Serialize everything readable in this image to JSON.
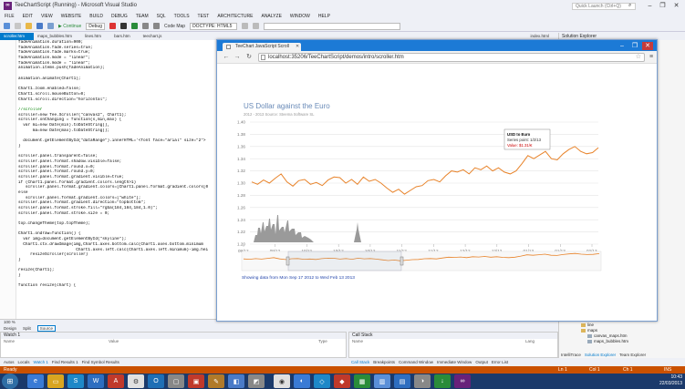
{
  "vs": {
    "title": "TeeChartScript (Running) - Microsoft Visual Studio",
    "quick_launch_placeholder": "Quick Launch (Ctrl+Q)",
    "menu": [
      "FILE",
      "EDIT",
      "VIEW",
      "WEBSITE",
      "BUILD",
      "DEBUG",
      "TEAM",
      "SQL",
      "TOOLS",
      "TEST",
      "ARCHITECTURE",
      "ANALYZE",
      "WINDOW",
      "HELP"
    ],
    "toolbar": {
      "continue_label": "▶ Continue",
      "config_value": "Debug",
      "code_map_label": "Code Map",
      "doctype_value": "DOCTYPE: HTML5"
    },
    "doc_tabs": [
      "scroller.htm",
      "maps_bubbles.htm",
      "lines.htm",
      "bars.htm",
      "teechart.js"
    ],
    "right_doc_tab": "index.html",
    "code_lines": [
      "fadeAnimation.duration=900;",
      "fadeAnimation.fade.series=true;",
      "fadeAnimation.fade.marks=true;",
      "fadeAnimation.mode = \"linear\";",
      "fadeAnimation.mode = \"linear\";",
      "animation.items.push(fadeAnimation);",
      "",
      "animation.animate(Chart1);",
      "",
      "Chart1.zoom.enabled=false;",
      "Chart1.scroll.mouseButton=0;",
      "Chart1.scroll.direction=\"horizontal\";",
      "",
      "//scroller",
      "scroller=new Tee.Scroller(\"canvas2\", Chart1);",
      "scroller.onChanging = function(s,min,max) {",
      "  var mi=new Date(min).toDateString(),",
      "      ma=new Date(max).toDateString();",
      "",
      "  document.getElementById(\"dataRange\").innerHTML='<font face=\"arial\" size=\"2\">",
      "}",
      "",
      "scroller.panel.transparent=false;",
      "scroller.panel.format.shadow.visible=false;",
      "scroller.panel.format.round.x=0;",
      "scroller.panel.format.round.y=0;",
      "scroller.panel.format.gradient.visible=true;",
      "if (Chart1.panel.format.gradient.colors.length>1)",
      "   scroller.panel.format.gradient.colors=[Chart1.panel.format.gradient.colors[0",
      "else",
      "   scroller.panel.format.gradient.colors=[\"white\"];",
      "scroller.panel.format.gradient.direction=\"topbottom\";",
      "scroller.panel.format.stroke.fill=\"rgba(184,184,184,1.0)\";",
      "scroller.panel.format.stroke.size = 0;",
      "",
      "top.changeTheme(top.topTheme);",
      "",
      "Chart1.ondraw=function() {",
      "  var img=document.getElementById(\"skyline\");",
      "  Chart1.ctx.drawImage(img,Chart1.axes.bottom.calc(Chart1.axes.bottom.minimum",
      "                        Chart1.axes.left.calc(Chart1.axes.left.minimum)-img.hei",
      "     resizeScroller(scroller)",
      "}",
      "",
      "resize(Chart1);",
      "}",
      "",
      "function resize(chart) {"
    ],
    "zoom_level": "100 %",
    "view_tabs": [
      "Design",
      "Split",
      "Source"
    ],
    "watch": {
      "title": "Watch 1",
      "col_name": "Name",
      "col_value": "Value",
      "col_type": "Type"
    },
    "callstack": {
      "title": "Call Stack",
      "col_name": "Name",
      "col_lang": "Lang"
    },
    "bottom_tabs_left": [
      "Autos",
      "Locals",
      "Watch 1",
      "Find Results 1",
      "Find Symbol Results"
    ],
    "bottom_tabs_right": [
      "Call Stack",
      "Breakpoints",
      "Command Window",
      "Immediate Window",
      "Output",
      "Error List"
    ],
    "solution_explorer": {
      "title": "Solution Explorer",
      "items": [
        "gantt",
        "line",
        "maps",
        "canvas_maps.htm",
        "maps_bubbles.htm"
      ],
      "tabs": [
        "IntelliTrace",
        "Solution Explorer",
        "Team Explorer"
      ]
    },
    "status": {
      "left": "Ready",
      "ln": "Ln 1",
      "col": "Col 1",
      "ch": "Ch 1",
      "ins": "INS"
    },
    "clock": {
      "time": "10:43",
      "date": "22/03/2013"
    }
  },
  "browser": {
    "tab_title": "TeeChart JavaScript Scroll",
    "url": "localhost:35206/TeeChartScript/demos/intro/scroller.htm",
    "data_range": "Showing data from Mon Sep 17 2012 to Wed Feb 13 2013"
  },
  "colors": {
    "accent": "#007acc",
    "status": "#ca5100",
    "series": "#e8832a",
    "browser": "#1c7ad6"
  },
  "chart_data": {
    "type": "line",
    "title": "US Dollar against the Euro",
    "subtitle": "2012 - 2013 Source: Steema Software SL",
    "ylim": [
      1.2,
      1.4
    ],
    "yticks": [
      "1.40",
      "1.38",
      "1.36",
      "1.34",
      "1.32",
      "1.30",
      "1.28",
      "1.26",
      "1.24",
      "1.22",
      "1.20"
    ],
    "xtick_labels": [
      "09/12",
      "09/12",
      "10/12",
      "10/12",
      "10/12",
      "11/12",
      "11/12",
      "12/12",
      "12/12",
      "01/13",
      "01/13",
      "02/13"
    ],
    "series": [
      {
        "values": [
          1.302,
          1.298,
          1.305,
          1.3,
          1.308,
          1.315,
          1.302,
          1.295,
          1.304,
          1.306,
          1.298,
          1.301,
          1.296,
          1.305,
          1.31,
          1.309,
          1.3,
          1.306,
          1.298,
          1.31,
          1.303,
          1.306,
          1.3,
          1.292,
          1.285,
          1.29,
          1.282,
          1.288,
          1.294,
          1.296,
          1.304,
          1.306,
          1.302,
          1.312,
          1.32,
          1.318,
          1.322,
          1.315,
          1.325,
          1.322,
          1.328,
          1.32,
          1.325,
          1.318,
          1.315,
          1.32,
          1.332,
          1.345,
          1.34,
          1.346,
          1.352,
          1.34,
          1.338,
          1.348,
          1.355,
          1.36,
          1.352,
          1.348,
          1.35,
          1.358
        ]
      }
    ],
    "tooltip": {
      "title": "USD to Euro",
      "line1": "Series point: 1/2/13",
      "line2": "Value: $1.31/€"
    }
  }
}
